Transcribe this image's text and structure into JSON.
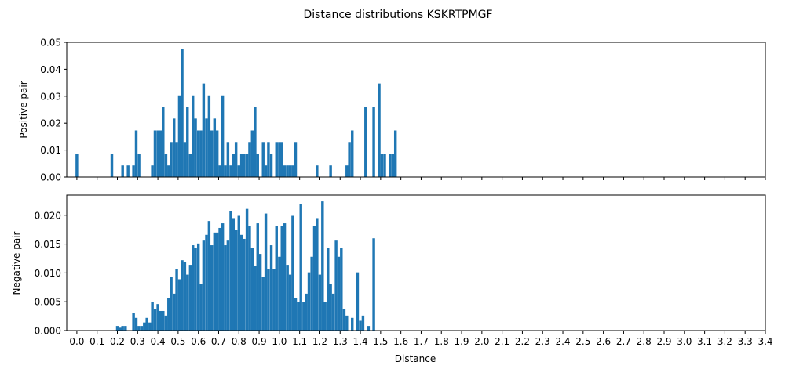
{
  "figure": {
    "title": "Distance distributions KSKRTPMGF",
    "xlabel": "Distance"
  },
  "colors": {
    "bar": "#1f77b4",
    "axis": "#000000",
    "background": "#ffffff"
  },
  "chart_data": [
    {
      "type": "bar",
      "name": "positive",
      "ylabel": "Positive pair",
      "xlim": [
        -0.05,
        3.4
      ],
      "ylim": [
        0,
        0.05
      ],
      "bin_width": 0.0133,
      "show_xtick_labels": false,
      "xticks": [
        0.0,
        0.1,
        0.2,
        0.3,
        0.4,
        0.5,
        0.6,
        0.7,
        0.8,
        0.9,
        1.0,
        1.1,
        1.2,
        1.3,
        1.4,
        1.5,
        1.6,
        1.7,
        1.8,
        1.9,
        2.0,
        2.1,
        2.2,
        2.3,
        2.4,
        2.5,
        2.6,
        2.7,
        2.8,
        2.9,
        3.0,
        3.1,
        3.2,
        3.3,
        3.4
      ],
      "yticks": [
        0.0,
        0.01,
        0.02,
        0.03,
        0.04,
        0.05
      ],
      "ytick_labels": [
        "0.00",
        "0.01",
        "0.02",
        "0.03",
        "0.04",
        "0.05"
      ],
      "bars": [
        {
          "x": 0.0,
          "y": 0.0085
        },
        {
          "x": 0.173,
          "y": 0.0085
        },
        {
          "x": 0.226,
          "y": 0.0043
        },
        {
          "x": 0.253,
          "y": 0.0043
        },
        {
          "x": 0.28,
          "y": 0.0043
        },
        {
          "x": 0.293,
          "y": 0.0173
        },
        {
          "x": 0.307,
          "y": 0.0085
        },
        {
          "x": 0.373,
          "y": 0.0043
        },
        {
          "x": 0.386,
          "y": 0.0173
        },
        {
          "x": 0.4,
          "y": 0.0173
        },
        {
          "x": 0.413,
          "y": 0.0173
        },
        {
          "x": 0.426,
          "y": 0.026
        },
        {
          "x": 0.44,
          "y": 0.0085
        },
        {
          "x": 0.453,
          "y": 0.0043
        },
        {
          "x": 0.466,
          "y": 0.013
        },
        {
          "x": 0.48,
          "y": 0.0217
        },
        {
          "x": 0.493,
          "y": 0.013
        },
        {
          "x": 0.506,
          "y": 0.0303
        },
        {
          "x": 0.52,
          "y": 0.0475
        },
        {
          "x": 0.533,
          "y": 0.013
        },
        {
          "x": 0.546,
          "y": 0.026
        },
        {
          "x": 0.56,
          "y": 0.0085
        },
        {
          "x": 0.573,
          "y": 0.0303
        },
        {
          "x": 0.586,
          "y": 0.0217
        },
        {
          "x": 0.6,
          "y": 0.0173
        },
        {
          "x": 0.613,
          "y": 0.0173
        },
        {
          "x": 0.626,
          "y": 0.0347
        },
        {
          "x": 0.64,
          "y": 0.0217
        },
        {
          "x": 0.653,
          "y": 0.0303
        },
        {
          "x": 0.666,
          "y": 0.0173
        },
        {
          "x": 0.68,
          "y": 0.0217
        },
        {
          "x": 0.693,
          "y": 0.0173
        },
        {
          "x": 0.706,
          "y": 0.0043
        },
        {
          "x": 0.72,
          "y": 0.0303
        },
        {
          "x": 0.733,
          "y": 0.0043
        },
        {
          "x": 0.746,
          "y": 0.013
        },
        {
          "x": 0.76,
          "y": 0.0043
        },
        {
          "x": 0.773,
          "y": 0.0085
        },
        {
          "x": 0.786,
          "y": 0.013
        },
        {
          "x": 0.8,
          "y": 0.0043
        },
        {
          "x": 0.813,
          "y": 0.0085
        },
        {
          "x": 0.826,
          "y": 0.0085
        },
        {
          "x": 0.84,
          "y": 0.0085
        },
        {
          "x": 0.853,
          "y": 0.013
        },
        {
          "x": 0.866,
          "y": 0.0173
        },
        {
          "x": 0.88,
          "y": 0.026
        },
        {
          "x": 0.893,
          "y": 0.0085
        },
        {
          "x": 0.92,
          "y": 0.013
        },
        {
          "x": 0.933,
          "y": 0.0043
        },
        {
          "x": 0.946,
          "y": 0.013
        },
        {
          "x": 0.96,
          "y": 0.0085
        },
        {
          "x": 0.986,
          "y": 0.013
        },
        {
          "x": 1.0,
          "y": 0.013
        },
        {
          "x": 1.013,
          "y": 0.013
        },
        {
          "x": 1.026,
          "y": 0.0043
        },
        {
          "x": 1.04,
          "y": 0.0043
        },
        {
          "x": 1.053,
          "y": 0.0043
        },
        {
          "x": 1.066,
          "y": 0.0043
        },
        {
          "x": 1.08,
          "y": 0.013
        },
        {
          "x": 1.186,
          "y": 0.0043
        },
        {
          "x": 1.253,
          "y": 0.0043
        },
        {
          "x": 1.333,
          "y": 0.0043
        },
        {
          "x": 1.346,
          "y": 0.013
        },
        {
          "x": 1.36,
          "y": 0.0173
        },
        {
          "x": 1.426,
          "y": 0.026
        },
        {
          "x": 1.466,
          "y": 0.026
        },
        {
          "x": 1.493,
          "y": 0.0347
        },
        {
          "x": 1.506,
          "y": 0.0085
        },
        {
          "x": 1.52,
          "y": 0.0085
        },
        {
          "x": 1.546,
          "y": 0.0085
        },
        {
          "x": 1.56,
          "y": 0.0085
        },
        {
          "x": 1.573,
          "y": 0.0173
        }
      ]
    },
    {
      "type": "bar",
      "name": "negative",
      "ylabel": "Negative pair",
      "xlim": [
        -0.05,
        3.4
      ],
      "ylim": [
        0,
        0.0235
      ],
      "bin_width": 0.0133,
      "show_xtick_labels": true,
      "xticks": [
        0.0,
        0.1,
        0.2,
        0.3,
        0.4,
        0.5,
        0.6,
        0.7,
        0.8,
        0.9,
        1.0,
        1.1,
        1.2,
        1.3,
        1.4,
        1.5,
        1.6,
        1.7,
        1.8,
        1.9,
        2.0,
        2.1,
        2.2,
        2.3,
        2.4,
        2.5,
        2.6,
        2.7,
        2.8,
        2.9,
        3.0,
        3.1,
        3.2,
        3.3,
        3.4
      ],
      "xtick_labels": [
        "0.0",
        "0.1",
        "0.2",
        "0.3",
        "0.4",
        "0.5",
        "0.6",
        "0.7",
        "0.8",
        "0.9",
        "1.0",
        "1.1",
        "1.2",
        "1.3",
        "1.4",
        "1.5",
        "1.6",
        "1.7",
        "1.8",
        "1.9",
        "2.0",
        "2.1",
        "2.2",
        "2.3",
        "2.4",
        "2.5",
        "2.6",
        "2.7",
        "2.8",
        "2.9",
        "3.0",
        "3.1",
        "3.2",
        "3.3",
        "3.4"
      ],
      "yticks": [
        0.0,
        0.005,
        0.01,
        0.015,
        0.02
      ],
      "ytick_labels": [
        "0.000",
        "0.005",
        "0.010",
        "0.015",
        "0.020"
      ],
      "bars": [
        {
          "x": 0.2,
          "y": 0.0008
        },
        {
          "x": 0.213,
          "y": 0.0005
        },
        {
          "x": 0.226,
          "y": 0.0008
        },
        {
          "x": 0.24,
          "y": 0.0008
        },
        {
          "x": 0.28,
          "y": 0.003
        },
        {
          "x": 0.293,
          "y": 0.0022
        },
        {
          "x": 0.306,
          "y": 0.0008
        },
        {
          "x": 0.32,
          "y": 0.0008
        },
        {
          "x": 0.333,
          "y": 0.0014
        },
        {
          "x": 0.346,
          "y": 0.0022
        },
        {
          "x": 0.36,
          "y": 0.0014
        },
        {
          "x": 0.373,
          "y": 0.005
        },
        {
          "x": 0.386,
          "y": 0.0038
        },
        {
          "x": 0.4,
          "y": 0.0046
        },
        {
          "x": 0.413,
          "y": 0.0034
        },
        {
          "x": 0.426,
          "y": 0.0034
        },
        {
          "x": 0.44,
          "y": 0.0026
        },
        {
          "x": 0.453,
          "y": 0.0056
        },
        {
          "x": 0.466,
          "y": 0.0093
        },
        {
          "x": 0.48,
          "y": 0.0064
        },
        {
          "x": 0.493,
          "y": 0.0106
        },
        {
          "x": 0.506,
          "y": 0.0089
        },
        {
          "x": 0.52,
          "y": 0.0122
        },
        {
          "x": 0.533,
          "y": 0.0119
        },
        {
          "x": 0.546,
          "y": 0.0097
        },
        {
          "x": 0.56,
          "y": 0.0114
        },
        {
          "x": 0.573,
          "y": 0.0148
        },
        {
          "x": 0.586,
          "y": 0.0143
        },
        {
          "x": 0.6,
          "y": 0.0151
        },
        {
          "x": 0.613,
          "y": 0.0081
        },
        {
          "x": 0.626,
          "y": 0.0156
        },
        {
          "x": 0.64,
          "y": 0.0166
        },
        {
          "x": 0.653,
          "y": 0.019
        },
        {
          "x": 0.666,
          "y": 0.0148
        },
        {
          "x": 0.68,
          "y": 0.017
        },
        {
          "x": 0.693,
          "y": 0.017
        },
        {
          "x": 0.706,
          "y": 0.0178
        },
        {
          "x": 0.72,
          "y": 0.0186
        },
        {
          "x": 0.733,
          "y": 0.0148
        },
        {
          "x": 0.746,
          "y": 0.0156
        },
        {
          "x": 0.76,
          "y": 0.0207
        },
        {
          "x": 0.773,
          "y": 0.0195
        },
        {
          "x": 0.786,
          "y": 0.0174
        },
        {
          "x": 0.8,
          "y": 0.0199
        },
        {
          "x": 0.813,
          "y": 0.0166
        },
        {
          "x": 0.826,
          "y": 0.0159
        },
        {
          "x": 0.84,
          "y": 0.0211
        },
        {
          "x": 0.853,
          "y": 0.0182
        },
        {
          "x": 0.866,
          "y": 0.0143
        },
        {
          "x": 0.88,
          "y": 0.0112
        },
        {
          "x": 0.893,
          "y": 0.0186
        },
        {
          "x": 0.906,
          "y": 0.0133
        },
        {
          "x": 0.92,
          "y": 0.0093
        },
        {
          "x": 0.933,
          "y": 0.0203
        },
        {
          "x": 0.946,
          "y": 0.0106
        },
        {
          "x": 0.96,
          "y": 0.0148
        },
        {
          "x": 0.973,
          "y": 0.0106
        },
        {
          "x": 0.986,
          "y": 0.0182
        },
        {
          "x": 1.0,
          "y": 0.0128
        },
        {
          "x": 1.013,
          "y": 0.0182
        },
        {
          "x": 1.026,
          "y": 0.0186
        },
        {
          "x": 1.04,
          "y": 0.0114
        },
        {
          "x": 1.053,
          "y": 0.0097
        },
        {
          "x": 1.066,
          "y": 0.0199
        },
        {
          "x": 1.08,
          "y": 0.0056
        },
        {
          "x": 1.093,
          "y": 0.005
        },
        {
          "x": 1.106,
          "y": 0.022
        },
        {
          "x": 1.12,
          "y": 0.005
        },
        {
          "x": 1.133,
          "y": 0.0064
        },
        {
          "x": 1.146,
          "y": 0.0101
        },
        {
          "x": 1.16,
          "y": 0.0128
        },
        {
          "x": 1.173,
          "y": 0.0182
        },
        {
          "x": 1.186,
          "y": 0.0195
        },
        {
          "x": 1.2,
          "y": 0.0097
        },
        {
          "x": 1.213,
          "y": 0.0224
        },
        {
          "x": 1.226,
          "y": 0.005
        },
        {
          "x": 1.24,
          "y": 0.0143
        },
        {
          "x": 1.253,
          "y": 0.0081
        },
        {
          "x": 1.266,
          "y": 0.0064
        },
        {
          "x": 1.28,
          "y": 0.0156
        },
        {
          "x": 1.293,
          "y": 0.0128
        },
        {
          "x": 1.306,
          "y": 0.0143
        },
        {
          "x": 1.32,
          "y": 0.0038
        },
        {
          "x": 1.333,
          "y": 0.0026
        },
        {
          "x": 1.36,
          "y": 0.0022
        },
        {
          "x": 1.386,
          "y": 0.0101
        },
        {
          "x": 1.4,
          "y": 0.0017
        },
        {
          "x": 1.413,
          "y": 0.0026
        },
        {
          "x": 1.44,
          "y": 0.0008
        },
        {
          "x": 1.466,
          "y": 0.016
        }
      ]
    }
  ]
}
